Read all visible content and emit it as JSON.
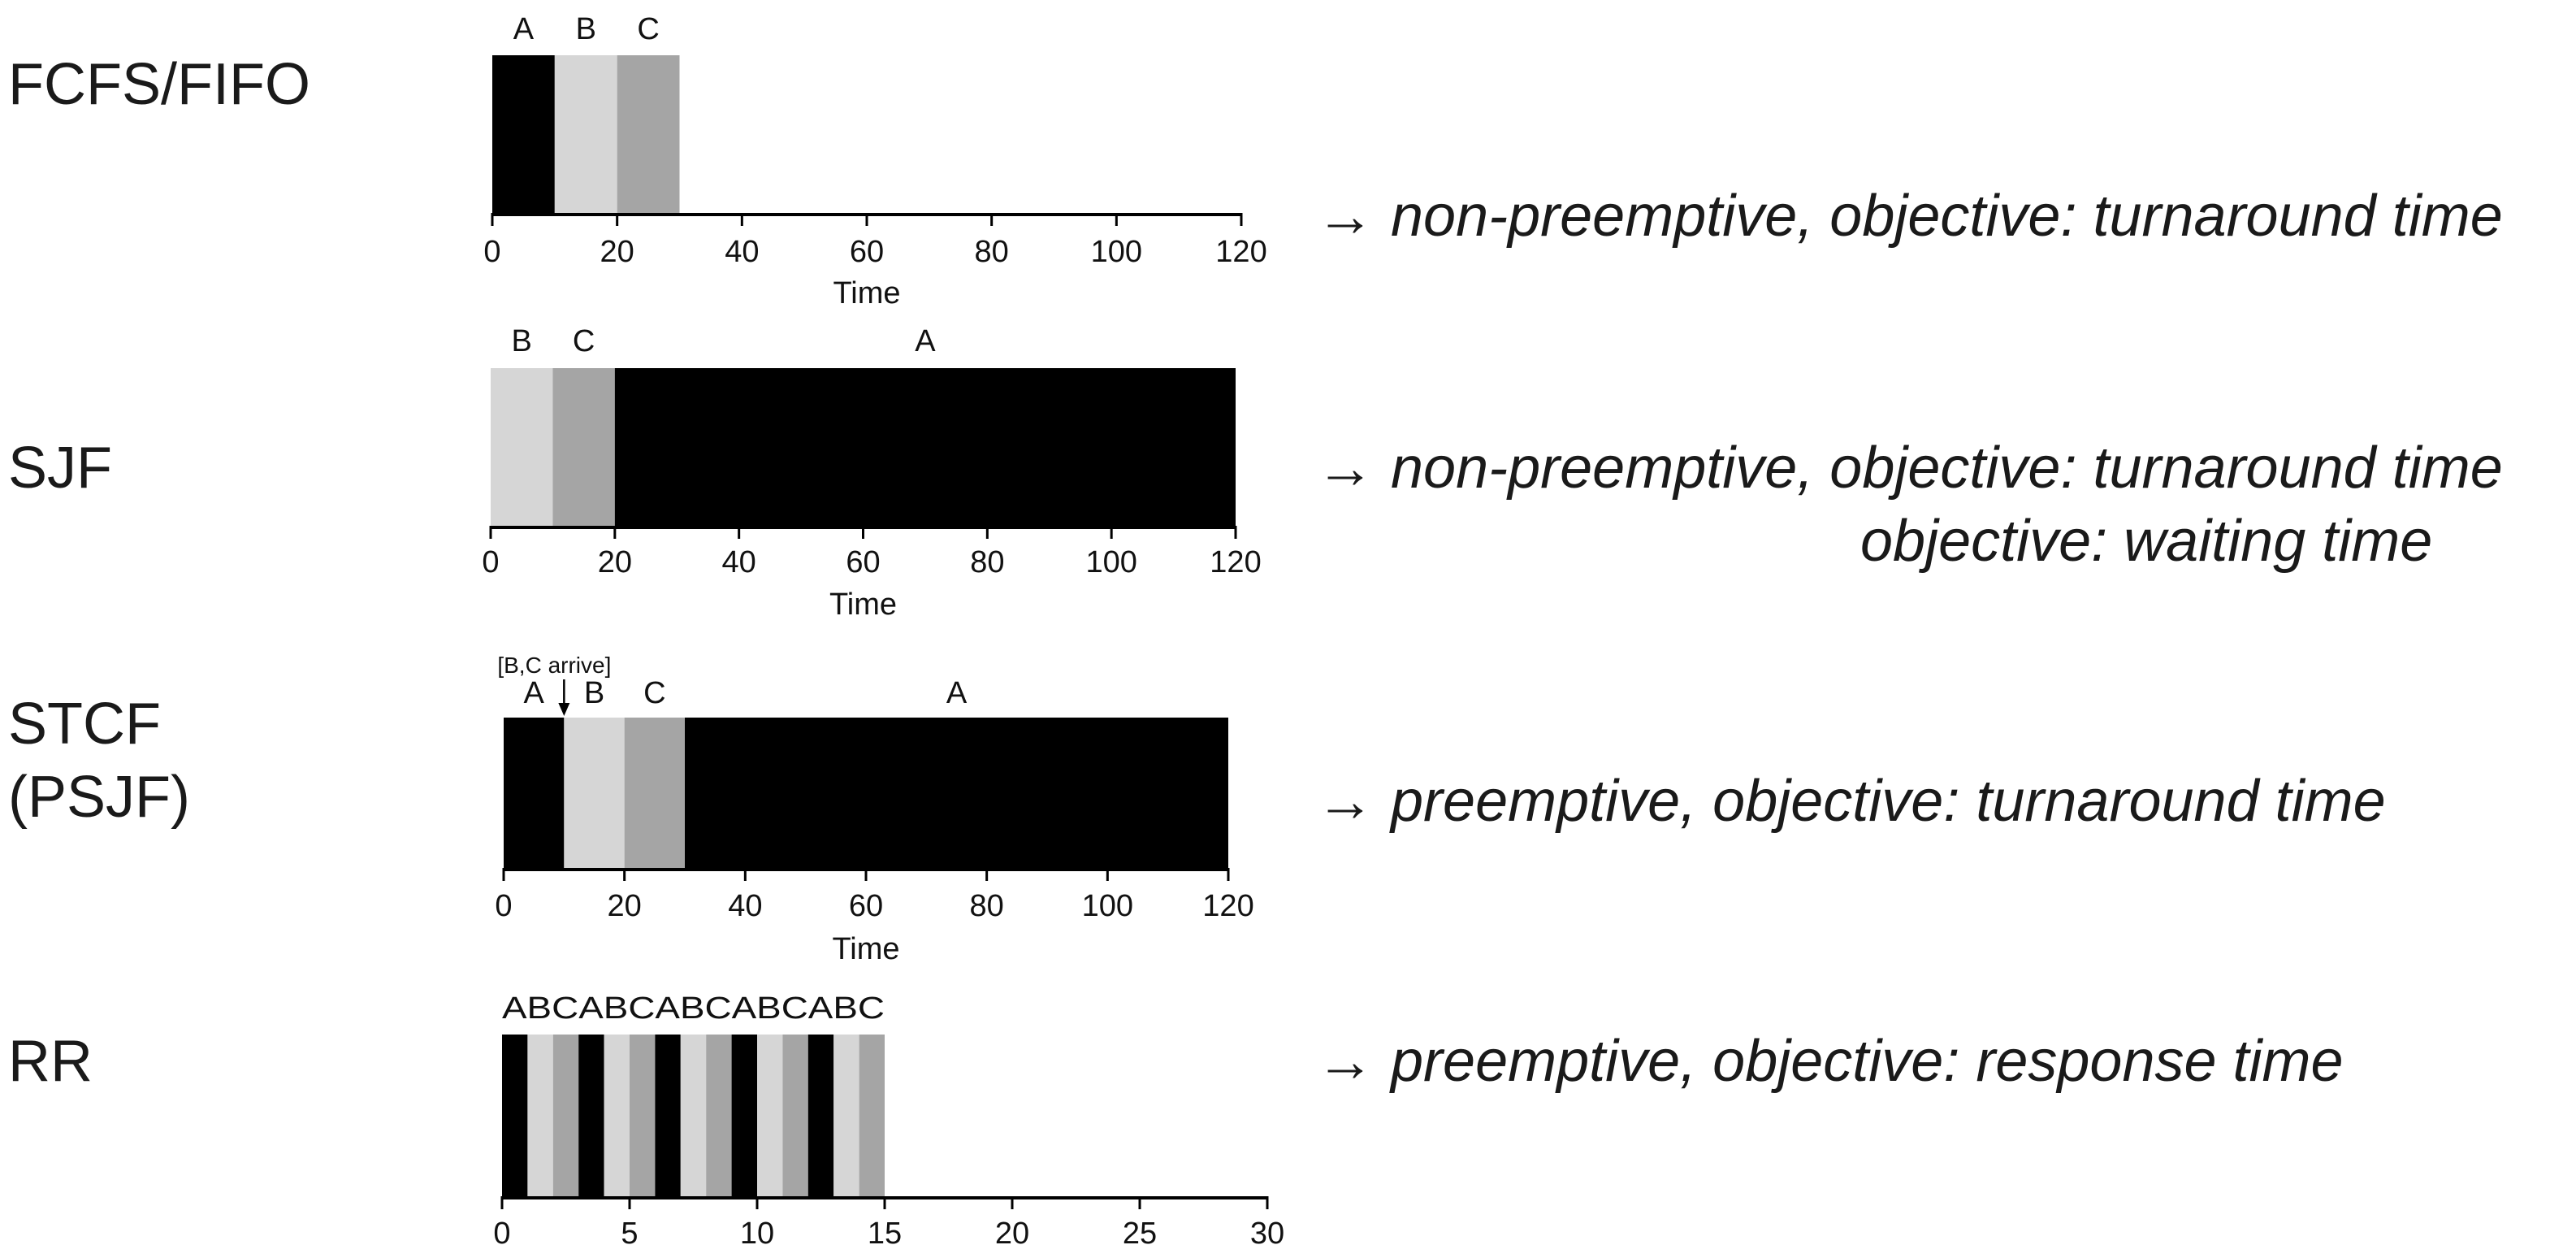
{
  "colors": {
    "A": "#000000",
    "B": "#d6d6d6",
    "C": "#a5a5a5"
  },
  "schedulers": [
    {
      "name_lines": [
        "FCFS/FIFO"
      ],
      "description_lines": [
        "→ non-preemptive, objective: turnaround time"
      ],
      "chart": {
        "type": "timeline",
        "xlim": [
          0,
          120
        ],
        "ticks": [
          "0",
          "20",
          "40",
          "60",
          "80",
          "100",
          "120"
        ],
        "xlabel": "Time",
        "segments": [
          {
            "job": "A",
            "start": 0,
            "end": 10
          },
          {
            "job": "B",
            "start": 10,
            "end": 20
          },
          {
            "job": "C",
            "start": 20,
            "end": 30
          }
        ],
        "labels_text": [
          "A",
          "B",
          "C"
        ]
      }
    },
    {
      "name_lines": [
        "SJF"
      ],
      "description_lines": [
        "→ non-preemptive, objective: turnaround time",
        "objective: waiting time"
      ],
      "chart": {
        "type": "timeline",
        "xlim": [
          0,
          120
        ],
        "ticks": [
          "0",
          "20",
          "40",
          "60",
          "80",
          "100",
          "120"
        ],
        "xlabel": "Time",
        "segments": [
          {
            "job": "B",
            "start": 0,
            "end": 10
          },
          {
            "job": "C",
            "start": 10,
            "end": 20
          },
          {
            "job": "A",
            "start": 20,
            "end": 120
          }
        ],
        "labels_text": [
          "B",
          "C",
          "A"
        ]
      }
    },
    {
      "name_lines": [
        "STCF",
        "(PSJF)"
      ],
      "description_lines": [
        "→ preemptive, objective: turnaround time"
      ],
      "chart": {
        "type": "timeline",
        "xlim": [
          0,
          120
        ],
        "ticks": [
          "0",
          "20",
          "40",
          "60",
          "80",
          "100",
          "120"
        ],
        "xlabel": "Time",
        "annotation": {
          "text": "[B,C arrive]",
          "at": 10
        },
        "segments": [
          {
            "job": "A",
            "start": 0,
            "end": 10
          },
          {
            "job": "B",
            "start": 10,
            "end": 20
          },
          {
            "job": "C",
            "start": 20,
            "end": 30
          },
          {
            "job": "A",
            "start": 30,
            "end": 120
          }
        ],
        "labels_text": [
          "A",
          "B",
          "C",
          "A"
        ]
      }
    },
    {
      "name_lines": [
        "RR"
      ],
      "description_lines": [
        "→ preemptive, objective: response time"
      ],
      "chart": {
        "type": "timeline",
        "xlim": [
          0,
          30
        ],
        "ticks": [
          "0",
          "5",
          "10",
          "15",
          "20",
          "25",
          "30"
        ],
        "xlabel": "",
        "segments": [
          {
            "job": "A",
            "start": 0,
            "end": 1
          },
          {
            "job": "B",
            "start": 1,
            "end": 2
          },
          {
            "job": "C",
            "start": 2,
            "end": 3
          },
          {
            "job": "A",
            "start": 3,
            "end": 4
          },
          {
            "job": "B",
            "start": 4,
            "end": 5
          },
          {
            "job": "C",
            "start": 5,
            "end": 6
          },
          {
            "job": "A",
            "start": 6,
            "end": 7
          },
          {
            "job": "B",
            "start": 7,
            "end": 8
          },
          {
            "job": "C",
            "start": 8,
            "end": 9
          },
          {
            "job": "A",
            "start": 9,
            "end": 10
          },
          {
            "job": "B",
            "start": 10,
            "end": 11
          },
          {
            "job": "C",
            "start": 11,
            "end": 12
          },
          {
            "job": "A",
            "start": 12,
            "end": 13
          },
          {
            "job": "B",
            "start": 13,
            "end": 14
          },
          {
            "job": "C",
            "start": 14,
            "end": 15
          }
        ],
        "labels_text": [
          "ABCABCABCABCABC"
        ]
      }
    }
  ]
}
